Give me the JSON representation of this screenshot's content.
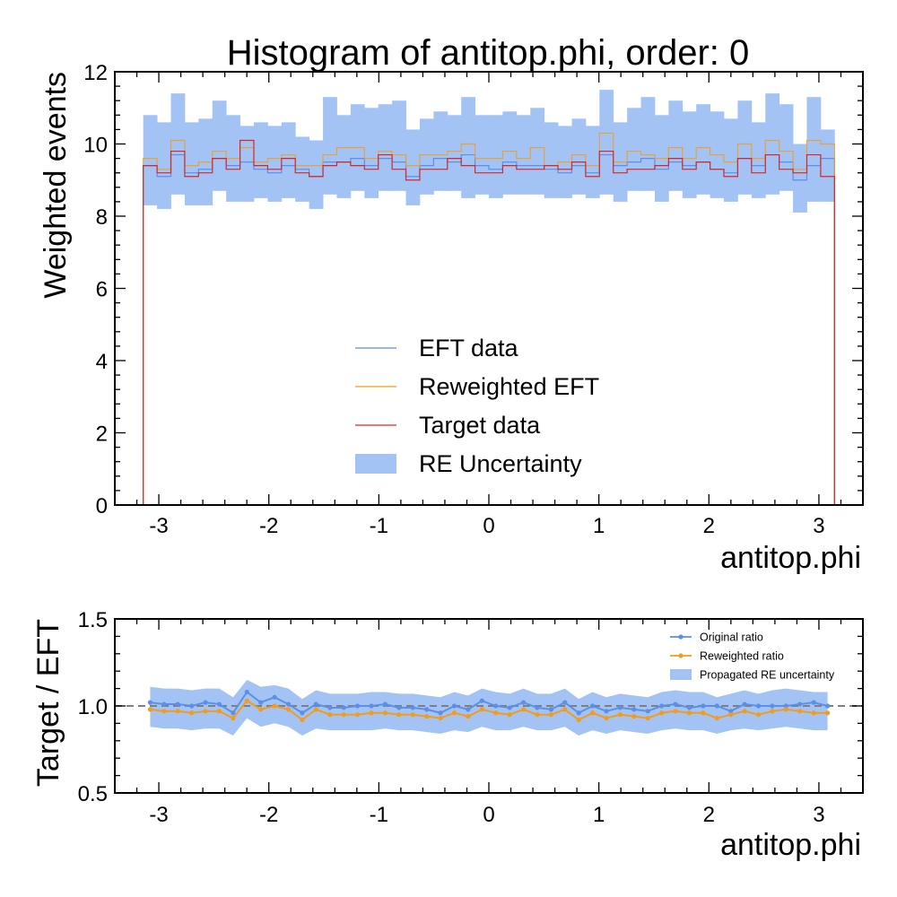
{
  "chart_data": [
    {
      "type": "histogram",
      "title": "Histogram of antitop.phi, order: 0",
      "xlabel": "antitop.phi",
      "ylabel": "Weighted events",
      "xlim": [
        -3.4,
        3.4
      ],
      "ylim": [
        0,
        12
      ],
      "xticks": [
        -3,
        -2,
        -1,
        0,
        1,
        2,
        3
      ],
      "yticks": [
        0,
        2,
        4,
        6,
        8,
        10,
        12
      ],
      "bin_edges": [
        -3.14159,
        -3.01593,
        -2.89027,
        -2.7646,
        -2.63894,
        -2.51327,
        -2.38761,
        -2.26195,
        -2.13628,
        -2.01062,
        -1.88496,
        -1.75929,
        -1.63363,
        -1.50796,
        -1.3823,
        -1.25664,
        -1.13097,
        -1.00531,
        -0.87965,
        -0.75398,
        -0.62832,
        -0.50265,
        -0.37699,
        -0.25133,
        -0.12566,
        0.0,
        0.12566,
        0.25133,
        0.37699,
        0.50265,
        0.62832,
        0.75398,
        0.87965,
        1.00531,
        1.13097,
        1.25664,
        1.3823,
        1.50796,
        1.63363,
        1.75929,
        1.88496,
        2.01062,
        2.13628,
        2.26195,
        2.38761,
        2.51327,
        2.63894,
        2.7646,
        2.89027,
        3.01593,
        3.14159
      ],
      "legend_position": "center",
      "series": [
        {
          "name": "EFT data",
          "style": "step",
          "color": "#5b8fe8",
          "values": [
            9.4,
            9.1,
            9.7,
            9.2,
            9.3,
            9.6,
            9.4,
            9.5,
            9.3,
            9.2,
            9.4,
            9.3,
            9.1,
            9.5,
            9.5,
            9.6,
            9.4,
            9.6,
            9.5,
            9.1,
            9.4,
            9.6,
            9.5,
            9.7,
            9.4,
            9.3,
            9.5,
            9.4,
            9.4,
            9.3,
            9.2,
            9.4,
            9.2,
            9.7,
            9.4,
            9.5,
            9.6,
            9.3,
            9.5,
            9.4,
            9.5,
            9.3,
            9.2,
            9.6,
            9.4,
            9.7,
            9.5,
            9.0,
            9.4,
            9.6
          ]
        },
        {
          "name": "Reweighted EFT",
          "style": "step",
          "color": "#f39c1b",
          "values": [
            9.6,
            9.3,
            10.1,
            9.4,
            9.5,
            9.8,
            9.6,
            9.9,
            9.5,
            9.6,
            9.7,
            9.4,
            9.4,
            9.7,
            9.9,
            9.9,
            9.6,
            9.8,
            9.7,
            9.4,
            9.7,
            9.7,
            9.8,
            10.0,
            9.6,
            9.6,
            9.8,
            9.6,
            9.9,
            9.4,
            9.5,
            9.7,
            9.4,
            10.3,
            9.5,
            9.8,
            9.7,
            9.6,
            9.9,
            9.6,
            9.9,
            9.7,
            9.5,
            10.0,
            9.6,
            10.1,
            9.8,
            9.3,
            10.1,
            10.0
          ]
        },
        {
          "name": "Target data",
          "style": "step",
          "color": "#d62728",
          "values": [
            9.4,
            9.2,
            9.8,
            9.1,
            9.2,
            9.6,
            9.3,
            10.1,
            9.4,
            9.3,
            9.6,
            9.2,
            9.1,
            9.4,
            9.5,
            9.4,
            9.3,
            9.7,
            9.3,
            9.0,
            9.3,
            9.3,
            9.6,
            9.4,
            9.2,
            9.2,
            9.4,
            9.3,
            9.3,
            9.4,
            9.3,
            9.5,
            9.1,
            9.8,
            9.2,
            9.3,
            9.3,
            9.4,
            9.6,
            9.3,
            9.5,
            9.3,
            9.1,
            9.6,
            9.2,
            9.7,
            9.3,
            9.2,
            9.7,
            9.1
          ]
        },
        {
          "name": "RE Uncertainty",
          "style": "band",
          "color": "#a4c3f5",
          "low": [
            8.3,
            8.2,
            8.6,
            8.3,
            8.3,
            8.7,
            8.4,
            8.4,
            8.5,
            8.4,
            8.5,
            8.4,
            8.2,
            8.6,
            8.5,
            8.7,
            8.5,
            8.7,
            8.7,
            8.3,
            8.6,
            8.7,
            8.7,
            8.5,
            8.6,
            8.5,
            8.6,
            8.6,
            8.6,
            8.5,
            8.5,
            8.6,
            8.5,
            8.6,
            8.4,
            8.7,
            8.7,
            8.4,
            8.7,
            8.5,
            8.6,
            8.5,
            8.4,
            8.6,
            8.5,
            8.6,
            8.7,
            8.1,
            8.4,
            8.4
          ],
          "high": [
            10.8,
            10.6,
            11.4,
            10.6,
            10.7,
            11.2,
            10.8,
            10.5,
            10.6,
            10.5,
            10.6,
            10.2,
            10.1,
            11.3,
            10.8,
            11.1,
            11.0,
            11.1,
            11.2,
            10.4,
            10.7,
            10.9,
            10.8,
            11.3,
            10.8,
            10.8,
            10.9,
            10.8,
            11.0,
            10.6,
            10.5,
            10.7,
            10.5,
            11.5,
            10.6,
            11.0,
            11.3,
            10.8,
            11.2,
            10.9,
            11.1,
            10.9,
            10.7,
            11.2,
            10.6,
            11.4,
            11.1,
            10.0,
            11.3,
            10.4
          ]
        }
      ]
    },
    {
      "type": "line",
      "title": "",
      "xlabel": "antitop.phi",
      "ylabel": "Target / EFT",
      "xlim": [
        -3.4,
        3.4
      ],
      "ylim": [
        0.5,
        1.5
      ],
      "xticks": [
        -3,
        -2,
        -1,
        0,
        1,
        2,
        3
      ],
      "yticks": [
        0.5,
        1.0,
        1.5
      ],
      "ytick_labels": [
        "0.5",
        "1.0",
        "1.5"
      ],
      "reference_line": 1.0,
      "legend_position": "top-right",
      "x": [
        -3.07876,
        -2.9531,
        -2.82743,
        -2.70177,
        -2.57611,
        -2.45044,
        -2.32478,
        -2.19911,
        -2.07345,
        -1.94779,
        -1.82212,
        -1.69646,
        -1.5708,
        -1.44513,
        -1.31947,
        -1.19381,
        -1.06814,
        -0.94248,
        -0.81681,
        -0.69115,
        -0.56549,
        -0.43982,
        -0.31416,
        -0.1885,
        -0.06283,
        0.06283,
        0.1885,
        0.31416,
        0.43982,
        0.56549,
        0.69115,
        0.81681,
        0.94248,
        1.06814,
        1.19381,
        1.31947,
        1.44513,
        1.5708,
        1.69646,
        1.82212,
        1.94779,
        2.07345,
        2.19911,
        2.32478,
        2.45044,
        2.57611,
        2.70177,
        2.82743,
        2.9531,
        3.07876
      ],
      "series": [
        {
          "name": "Original ratio",
          "color": "#5b8fe8",
          "values": [
            1.02,
            1.01,
            1.01,
            1.0,
            1.02,
            1.01,
            0.96,
            1.08,
            1.02,
            1.05,
            1.01,
            0.96,
            1.01,
            0.99,
            0.99,
            1.0,
            1.0,
            1.01,
            0.99,
            0.99,
            0.98,
            0.96,
            1.0,
            0.98,
            1.03,
            1.0,
            0.99,
            1.02,
            0.99,
            0.98,
            1.02,
            0.96,
            1.0,
            0.97,
            0.99,
            0.98,
            0.97,
            1.0,
            1.01,
            0.99,
            1.0,
            1.0,
            0.97,
            1.01,
            1.0,
            1.0,
            1.0,
            1.01,
            1.02,
            1.0
          ]
        },
        {
          "name": "Reweighted ratio",
          "color": "#f39c1b",
          "values": [
            0.98,
            0.97,
            0.97,
            0.96,
            0.97,
            0.97,
            0.93,
            1.03,
            0.98,
            1.0,
            0.98,
            0.92,
            0.98,
            0.95,
            0.95,
            0.95,
            0.96,
            0.96,
            0.95,
            0.95,
            0.94,
            0.93,
            0.96,
            0.94,
            0.98,
            0.96,
            0.95,
            0.98,
            0.95,
            0.95,
            0.98,
            0.92,
            0.96,
            0.93,
            0.95,
            0.94,
            0.93,
            0.96,
            0.97,
            0.96,
            0.96,
            0.93,
            0.95,
            0.97,
            0.95,
            0.97,
            0.98,
            0.97,
            0.96,
            0.96
          ]
        },
        {
          "name": "Propagated RE uncertainty",
          "style": "band",
          "color": "#a4c3f5",
          "low": [
            0.88,
            0.87,
            0.87,
            0.86,
            0.87,
            0.87,
            0.83,
            0.93,
            0.88,
            0.9,
            0.88,
            0.83,
            0.87,
            0.86,
            0.86,
            0.86,
            0.86,
            0.87,
            0.86,
            0.86,
            0.85,
            0.84,
            0.86,
            0.85,
            0.88,
            0.86,
            0.86,
            0.88,
            0.86,
            0.86,
            0.88,
            0.83,
            0.86,
            0.84,
            0.86,
            0.85,
            0.84,
            0.86,
            0.87,
            0.86,
            0.86,
            0.84,
            0.86,
            0.87,
            0.86,
            0.87,
            0.88,
            0.87,
            0.86,
            0.86
          ],
          "high": [
            1.11,
            1.1,
            1.1,
            1.09,
            1.1,
            1.1,
            1.05,
            1.15,
            1.11,
            1.12,
            1.1,
            1.04,
            1.09,
            1.07,
            1.07,
            1.07,
            1.08,
            1.08,
            1.07,
            1.07,
            1.06,
            1.05,
            1.08,
            1.06,
            1.1,
            1.08,
            1.07,
            1.1,
            1.07,
            1.07,
            1.1,
            1.04,
            1.08,
            1.05,
            1.07,
            1.06,
            1.05,
            1.08,
            1.09,
            1.08,
            1.08,
            1.05,
            1.07,
            1.09,
            1.07,
            1.09,
            1.1,
            1.09,
            1.08,
            1.08
          ]
        }
      ]
    }
  ]
}
